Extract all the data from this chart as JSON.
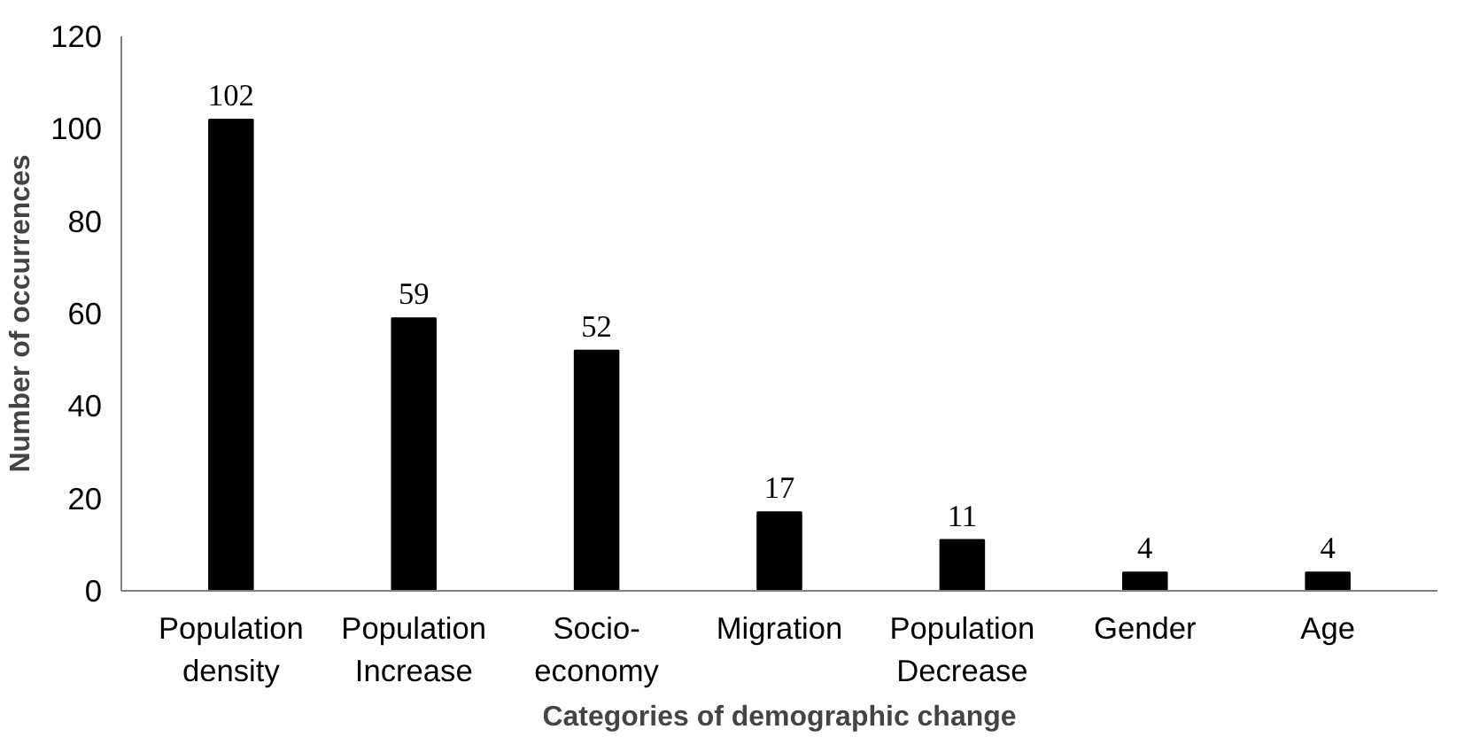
{
  "chart_data": {
    "type": "bar",
    "xlabel": "Categories of demographic change",
    "ylabel": "Number of occurrences",
    "categories": [
      "Population\ndensity",
      "Population\nIncrease",
      "Socio-\neconomy",
      "Migration",
      "Population\nDecrease",
      "Gender",
      "Age"
    ],
    "values": [
      102,
      59,
      52,
      17,
      11,
      4,
      4
    ],
    "color": "#000000",
    "ylim": [
      0,
      120
    ],
    "yticks": [
      0,
      20,
      40,
      60,
      80,
      100,
      120
    ],
    "grid": false,
    "data_labels": true
  }
}
